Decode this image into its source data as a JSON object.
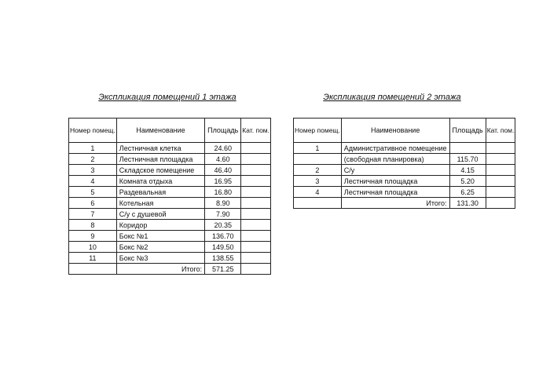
{
  "floor1": {
    "title": "Экспликация помещений 1 этажа",
    "headers": {
      "num": "Номер помещ.",
      "name": "Наименование",
      "area": "Площадь",
      "cat": "Кат. пом."
    },
    "rows": [
      {
        "num": "1",
        "name": "Лестничная клетка",
        "area": "24.60"
      },
      {
        "num": "2",
        "name": "Лестничная площадка",
        "area": "4.60"
      },
      {
        "num": "3",
        "name": "Складское помещение",
        "area": "46.40"
      },
      {
        "num": "4",
        "name": "Комната отдыха",
        "area": "16.95"
      },
      {
        "num": "5",
        "name": "Раздевальная",
        "area": "16.80"
      },
      {
        "num": "6",
        "name": "Котельная",
        "area": "8.90"
      },
      {
        "num": "7",
        "name": "С/у с душевой",
        "area": "7.90"
      },
      {
        "num": "8",
        "name": "Коридор",
        "area": "20.35"
      },
      {
        "num": "9",
        "name": "Бокс №1",
        "area": "136.70"
      },
      {
        "num": "10",
        "name": "Бокс №2",
        "area": "149.50"
      },
      {
        "num": "11",
        "name": "Бокс №3",
        "area": "138.55"
      }
    ],
    "total_label": "Итого:",
    "total": "571.25"
  },
  "floor2": {
    "title": "Экспликация помещений 2 этажа",
    "headers": {
      "num": "Номер помещ.",
      "name": "Наименование",
      "area": "Площадь",
      "cat": "Кат. пом."
    },
    "rows": [
      {
        "num": "1",
        "name": "Административное помещение",
        "area": ""
      },
      {
        "num": "",
        "name": "(свободная планировка)",
        "area": "115.70"
      },
      {
        "num": "2",
        "name": "С/у",
        "area": "4.15"
      },
      {
        "num": "3",
        "name": "Лестничная площадка",
        "area": "5.20"
      },
      {
        "num": "4",
        "name": "Лестничная площадка",
        "area": "6.25"
      }
    ],
    "total_label": "Итого:",
    "total": "131.30"
  }
}
